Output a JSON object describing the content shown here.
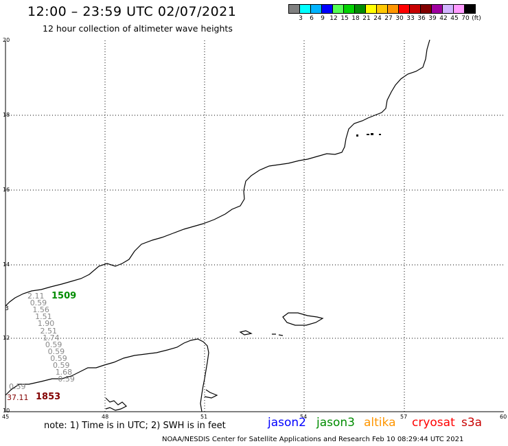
{
  "title": "12:00 – 23:59 UTC 02/07/2021",
  "subtitle": "12 hour collection of altimeter wave heights",
  "colorbar": {
    "swatches": [
      "#808080",
      "#00ffff",
      "#00b4ff",
      "#0000ff",
      "#54ff54",
      "#00d200",
      "#008c00",
      "#ffff00",
      "#ffc800",
      "#ff9600",
      "#ff0000",
      "#c80000",
      "#820000",
      "#a000a0",
      "#d2b4ff",
      "#ff9bff",
      "#000000"
    ],
    "labels": [
      "3",
      "6",
      "9",
      "12",
      "15",
      "18",
      "21",
      "24",
      "27",
      "30",
      "33",
      "36",
      "39",
      "42",
      "45",
      "70",
      "(ft)"
    ]
  },
  "lat_labels": [
    "20",
    "18",
    "16",
    "14",
    "12",
    "10"
  ],
  "lon_labels": [
    "45",
    "48",
    "51",
    "54",
    "57",
    "60"
  ],
  "passes": [
    {
      "id": "1509",
      "color": "#008c00",
      "values": [
        "2.11",
        "0.59",
        "1.56",
        "1.51",
        "1.90",
        "2.51",
        "1.74",
        "0.59",
        "0.59",
        "0.59",
        "0.59",
        "1.68",
        "0.59"
      ]
    },
    {
      "id": "1853",
      "color": "#820000",
      "values": [
        "0.59",
        "37.11"
      ]
    }
  ],
  "coast_label_3": "3",
  "note": "note:  1) Time is in UTC;  2) SWH is in feet",
  "satellites": [
    {
      "name": "jason2",
      "color": "#0000ff"
    },
    {
      "name": "jason3",
      "color": "#008c00"
    },
    {
      "name": "altika",
      "color": "#ff9600"
    },
    {
      "name": "cryosat",
      "color": "#ff0000"
    },
    {
      "name": "s3a",
      "color": "#c80000"
    }
  ],
  "credit": "NOAA/NESDIS Center for Satellite Applications and Research     Feb 10 08:29:44 UTC 2021"
}
